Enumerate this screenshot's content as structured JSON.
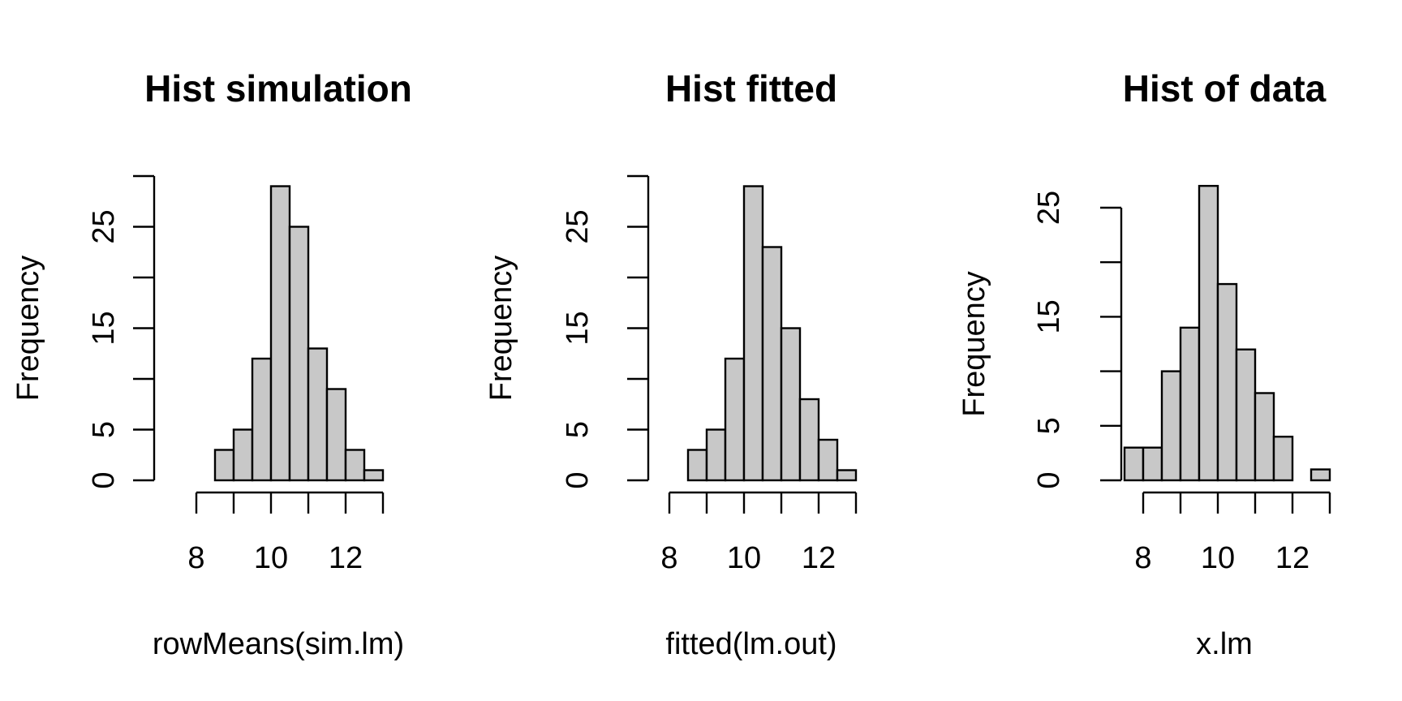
{
  "style": {
    "bar_fill": "#c8c8c8",
    "stroke": "#000000",
    "background": "#ffffff"
  },
  "chart_data": [
    {
      "type": "bar",
      "title": "Hist simulation",
      "xlabel": "rowMeans(sim.lm)",
      "ylabel": "Frequency",
      "bin_edges": [
        8.5,
        9,
        9.5,
        10,
        10.5,
        11,
        11.5,
        12,
        12.5,
        13
      ],
      "values": [
        3,
        5,
        12,
        29,
        25,
        13,
        9,
        3,
        1
      ],
      "xlim": [
        8,
        13
      ],
      "ylim": [
        0,
        30
      ],
      "xticks": [
        8,
        9,
        10,
        11,
        12,
        13
      ],
      "xtick_labels": [
        "8",
        "",
        "10",
        "",
        "12",
        ""
      ],
      "yticks": [
        0,
        5,
        10,
        15,
        20,
        25,
        30
      ],
      "ytick_labels": [
        "0",
        "5",
        "",
        "15",
        "",
        "25",
        ""
      ],
      "grid": false
    },
    {
      "type": "bar",
      "title": "Hist fitted",
      "xlabel": "fitted(lm.out)",
      "ylabel": "Frequency",
      "bin_edges": [
        8.5,
        9,
        9.5,
        10,
        10.5,
        11,
        11.5,
        12,
        12.5,
        13
      ],
      "values": [
        3,
        5,
        12,
        29,
        23,
        15,
        8,
        4,
        1
      ],
      "xlim": [
        8,
        13
      ],
      "ylim": [
        0,
        30
      ],
      "xticks": [
        8,
        9,
        10,
        11,
        12,
        13
      ],
      "xtick_labels": [
        "8",
        "",
        "10",
        "",
        "12",
        ""
      ],
      "yticks": [
        0,
        5,
        10,
        15,
        20,
        25,
        30
      ],
      "ytick_labels": [
        "0",
        "5",
        "",
        "15",
        "",
        "25",
        ""
      ],
      "grid": false
    },
    {
      "type": "bar",
      "title": "Hist of data",
      "xlabel": "x.lm",
      "ylabel": "Frequency",
      "bin_edges": [
        7.5,
        8,
        8.5,
        9,
        9.5,
        10,
        10.5,
        11,
        11.5,
        12,
        12.5,
        13
      ],
      "values": [
        3,
        3,
        10,
        14,
        27,
        18,
        12,
        8,
        4,
        0,
        1
      ],
      "xlim": [
        8,
        13
      ],
      "ylim": [
        0,
        25
      ],
      "xticks": [
        8,
        9,
        10,
        11,
        12,
        13
      ],
      "xtick_labels": [
        "8",
        "",
        "10",
        "",
        "12",
        ""
      ],
      "yticks": [
        0,
        5,
        10,
        15,
        20,
        25
      ],
      "ytick_labels": [
        "0",
        "5",
        "",
        "15",
        "",
        "25"
      ],
      "grid": false
    }
  ]
}
